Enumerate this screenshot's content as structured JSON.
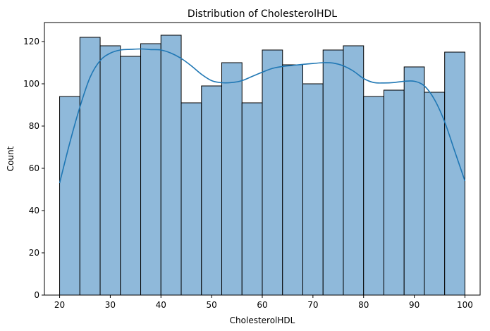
{
  "chart_data": {
    "type": "bar",
    "title": "Distribution of CholesterolHDL",
    "xlabel": "CholesterolHDL",
    "ylabel": "Count",
    "xlim": [
      17,
      103
    ],
    "ylim": [
      0,
      129
    ],
    "xticks": [
      20,
      30,
      40,
      50,
      60,
      70,
      80,
      90,
      100
    ],
    "yticks": [
      0,
      20,
      40,
      60,
      80,
      100,
      120
    ],
    "bin_edges": [
      20,
      24,
      28,
      32,
      36,
      40,
      44,
      48,
      52,
      56,
      60,
      64,
      68,
      72,
      76,
      80,
      84,
      88,
      92,
      96,
      100
    ],
    "counts": [
      94,
      122,
      118,
      113,
      119,
      123,
      91,
      99,
      110,
      91,
      116,
      109,
      100,
      116,
      118,
      94,
      97,
      108,
      96,
      115
    ],
    "kde": {
      "x": [
        20,
        22,
        24,
        26,
        28,
        30,
        32,
        34,
        36,
        38,
        40,
        42,
        44,
        46,
        48,
        50,
        52,
        54,
        56,
        58,
        60,
        62,
        64,
        66,
        68,
        70,
        72,
        74,
        76,
        78,
        80,
        82,
        84,
        86,
        88,
        90,
        92,
        94,
        96,
        98,
        100
      ],
      "y": [
        53,
        72,
        89,
        103,
        111,
        114.5,
        116,
        116.3,
        116.5,
        116.2,
        116,
        114.5,
        112,
        108.5,
        104.5,
        101.5,
        100.5,
        100.6,
        101.5,
        103.5,
        105.5,
        107.3,
        108.2,
        108.7,
        109.2,
        109.6,
        110,
        109.8,
        108.5,
        106,
        102.5,
        100.6,
        100.4,
        100.6,
        101.2,
        101.2,
        99,
        92.5,
        82,
        68,
        54
      ]
    },
    "bar_color": "#8fb9da",
    "bar_edge_color": "#000000",
    "line_color": "#1f77b4",
    "grid": false,
    "legend": false
  }
}
